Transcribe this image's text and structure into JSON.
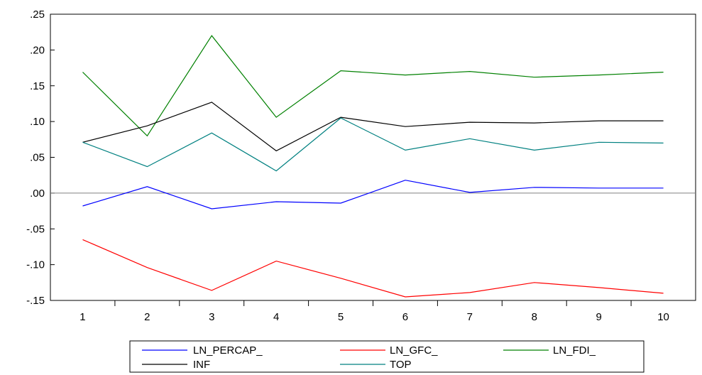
{
  "chart_data": {
    "type": "line",
    "title": "",
    "xlabel": "",
    "ylabel": "",
    "x": [
      1,
      2,
      3,
      4,
      5,
      6,
      7,
      8,
      9,
      10
    ],
    "ylim": [
      -0.15,
      0.25
    ],
    "yticks": [
      -0.15,
      -0.1,
      -0.05,
      0.0,
      0.05,
      0.1,
      0.15,
      0.2,
      0.25
    ],
    "ytick_labels": [
      "-.15",
      "-.10",
      "-.05",
      ".00",
      ".05",
      ".10",
      ".15",
      ".20",
      ".25"
    ],
    "xtick_labels": [
      "1",
      "2",
      "3",
      "4",
      "5",
      "6",
      "7",
      "8",
      "9",
      "10"
    ],
    "zero_line": true,
    "grid": false,
    "legend_position": "bottom-center",
    "series": [
      {
        "name": "LN_PERCAP_",
        "color": "#0000ff",
        "values": [
          -0.018,
          0.009,
          -0.022,
          -0.012,
          -0.014,
          0.018,
          0.001,
          0.008,
          0.007,
          0.007
        ]
      },
      {
        "name": "LN_GFC_",
        "color": "#ff0000",
        "values": [
          -0.065,
          -0.104,
          -0.136,
          -0.095,
          -0.119,
          -0.145,
          -0.139,
          -0.125,
          -0.132,
          -0.14
        ]
      },
      {
        "name": "LN_FDI_",
        "color": "#008000",
        "values": [
          0.169,
          0.08,
          0.22,
          0.106,
          0.171,
          0.165,
          0.17,
          0.162,
          0.165,
          0.169
        ]
      },
      {
        "name": "INF",
        "color": "#000000",
        "values": [
          0.071,
          0.094,
          0.127,
          0.059,
          0.106,
          0.093,
          0.099,
          0.098,
          0.101,
          0.101
        ]
      },
      {
        "name": "TOP",
        "color": "#008080",
        "values": [
          0.071,
          0.037,
          0.084,
          0.031,
          0.105,
          0.06,
          0.076,
          0.06,
          0.071,
          0.07
        ]
      }
    ]
  }
}
